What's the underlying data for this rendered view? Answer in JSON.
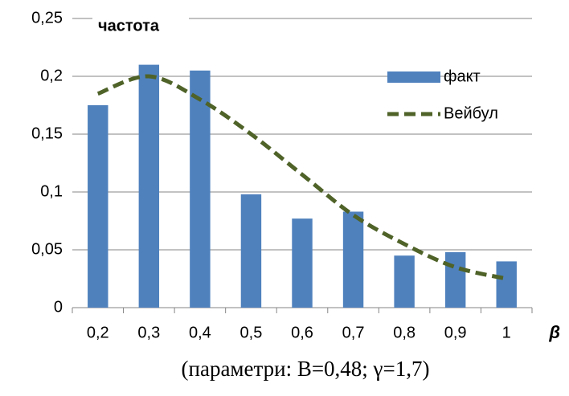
{
  "chart_data": {
    "type": "bar",
    "y_label": "частота",
    "x_label": "β",
    "caption": "(параметри: B=0,48; γ=1,7)",
    "categories": [
      "0,2",
      "0,3",
      "0,4",
      "0,5",
      "0,6",
      "0,7",
      "0,8",
      "0,9",
      "1"
    ],
    "series": [
      {
        "name": "факт",
        "type": "bar",
        "color": "#4f81bd",
        "values": [
          0.175,
          0.21,
          0.205,
          0.098,
          0.077,
          0.083,
          0.045,
          0.048,
          0.04
        ]
      },
      {
        "name": "Вейбул",
        "type": "line",
        "color": "#4f6228",
        "values": [
          0.185,
          0.2,
          0.18,
          0.15,
          0.115,
          0.08,
          0.055,
          0.035,
          0.025
        ]
      }
    ],
    "ylim": [
      0,
      0.25
    ],
    "yticks": [
      0,
      {
        "value": 0.05,
        "label": "0,05"
      },
      {
        "value": 0.1,
        "label": "0,1"
      },
      {
        "value": 0.15,
        "label": "0,15"
      },
      {
        "value": 0.2,
        "label": "0,2"
      },
      {
        "value": 0.25,
        "label": "0,25"
      }
    ],
    "grid": true,
    "legend": "right"
  }
}
